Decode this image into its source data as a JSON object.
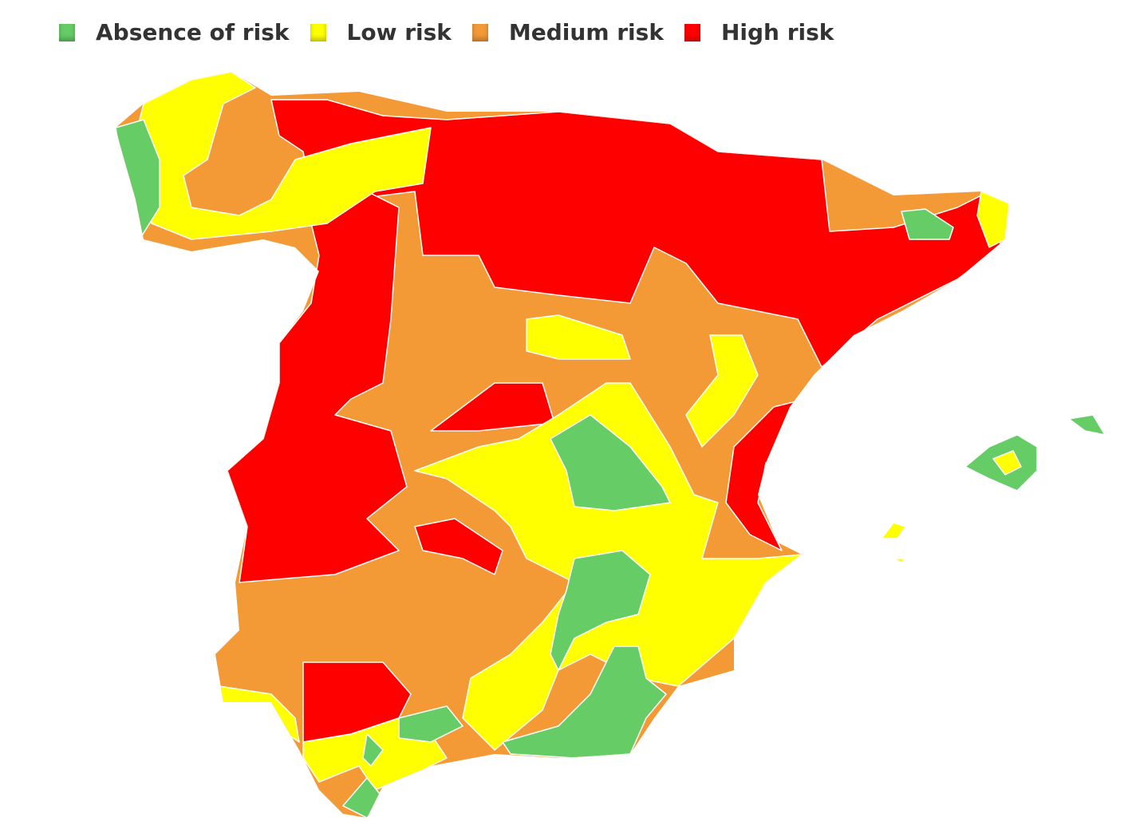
{
  "legend": {
    "items": [
      {
        "label": "Absence of risk",
        "color": "#66cc66"
      },
      {
        "label": "Low risk",
        "color": "#ffff00"
      },
      {
        "label": "Medium risk",
        "color": "#f39a37"
      },
      {
        "label": "High risk",
        "color": "#ff0000"
      }
    ]
  }
}
